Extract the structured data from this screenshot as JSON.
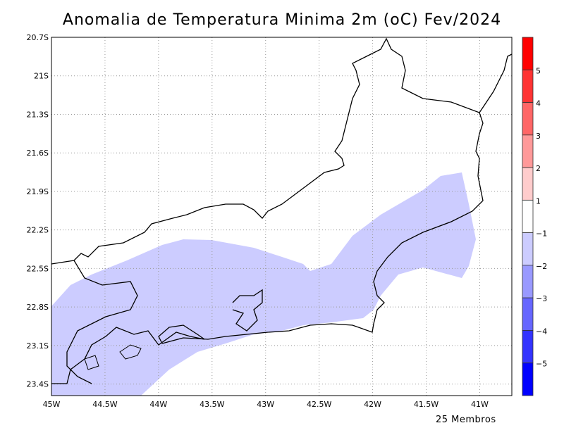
{
  "title": "Anomalia de Temperatura Minima 2m (oC) Fev/2024",
  "footer": "25 Membros",
  "map": {
    "lon_range": [
      -45,
      -40.7
    ],
    "lat_range": [
      -23.49,
      -20.7
    ],
    "lon_ticks": [
      {
        "v": -45,
        "label": "45W"
      },
      {
        "v": -44.5,
        "label": "44.5W"
      },
      {
        "v": -44,
        "label": "44W"
      },
      {
        "v": -43.5,
        "label": "43.5W"
      },
      {
        "v": -43,
        "label": "43W"
      },
      {
        "v": -42.5,
        "label": "42.5W"
      },
      {
        "v": -42,
        "label": "42W"
      },
      {
        "v": -41.5,
        "label": "41.5W"
      },
      {
        "v": -41,
        "label": "41W"
      }
    ],
    "lat_ticks": [
      {
        "v": -20.7,
        "label": "20.7S"
      },
      {
        "v": -21,
        "label": "21S"
      },
      {
        "v": -21.3,
        "label": "21.3S"
      },
      {
        "v": -21.6,
        "label": "21.6S"
      },
      {
        "v": -21.9,
        "label": "21.9S"
      },
      {
        "v": -22.2,
        "label": "22.2S"
      },
      {
        "v": -22.5,
        "label": "22.5S"
      },
      {
        "v": -22.8,
        "label": "22.8S"
      },
      {
        "v": -23.1,
        "label": "23.1S"
      },
      {
        "v": -23.4,
        "label": "23.4S"
      }
    ],
    "shaded_class_color": "#ccccff"
  },
  "colorbar": {
    "colors": [
      "#ff0000",
      "#ff3333",
      "#ff6666",
      "#ff9999",
      "#ffcccc",
      "#ffffff",
      "#ccccff",
      "#9999ff",
      "#6666ff",
      "#3333ff",
      "#0000ff"
    ],
    "labels": [
      "5",
      "4",
      "3",
      "2",
      "1",
      "-1",
      "-2",
      "-3",
      "-4",
      "-5"
    ]
  }
}
